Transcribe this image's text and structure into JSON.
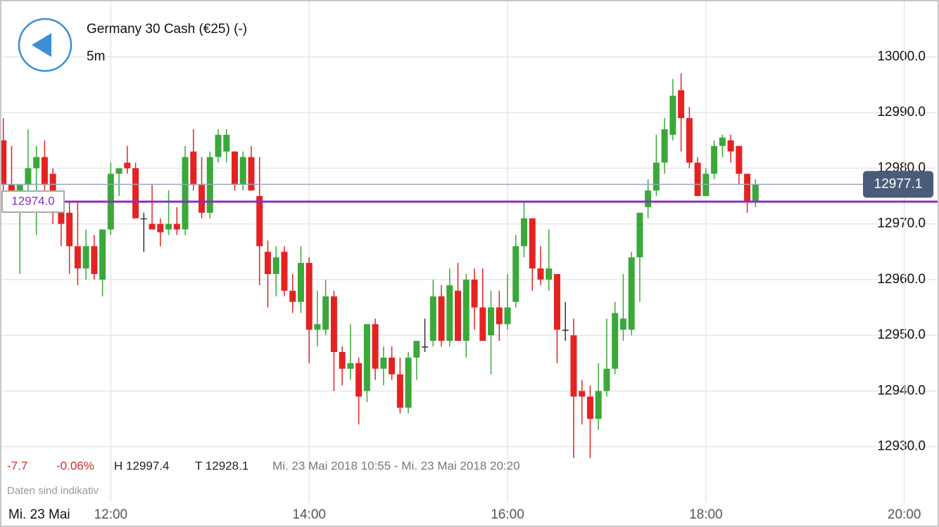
{
  "header": {
    "title": "Germany 30 Cash (€25) (-)",
    "interval": "5m"
  },
  "stats": {
    "change": "-7.7",
    "change_percent": "-0.06%",
    "high": "H 12997.4",
    "low": "T 12928.1",
    "range": "Mi. 23 Mai 2018 10:55 - Mi. 23 Mai 2018 20:20"
  },
  "note": "Daten sind indikativ",
  "date_label": "Mi. 23 Mai",
  "chart_data": {
    "type": "candlestick",
    "up_color": "#3aa83a",
    "down_color": "#e52222",
    "flat_color": "#333333",
    "grid": true,
    "xlim": [
      "10:53",
      "20:21"
    ],
    "xticks": [
      "12:00",
      "14:00",
      "16:00",
      "18:00",
      "20:00"
    ],
    "ylim": [
      12920,
      13010.2
    ],
    "yticks": [
      {
        "value": 12930,
        "label": "12930.0"
      },
      {
        "value": 12940,
        "label": "12940.0"
      },
      {
        "value": 12950,
        "label": "12950.0"
      },
      {
        "value": 12960,
        "label": "12960.0"
      },
      {
        "value": 12970,
        "label": "12970.0"
      },
      {
        "value": 12980,
        "label": "12980.0"
      },
      {
        "value": 12990,
        "label": "12990.0"
      },
      {
        "value": 13000,
        "label": "13000.0"
      }
    ],
    "x": [
      "10:55",
      "11:00",
      "11:05",
      "11:10",
      "11:15",
      "11:20",
      "11:25",
      "11:30",
      "11:35",
      "11:40",
      "11:45",
      "11:50",
      "11:55",
      "12:00",
      "12:05",
      "12:10",
      "12:15",
      "12:20",
      "12:25",
      "12:30",
      "12:35",
      "12:40",
      "12:45",
      "12:50",
      "12:55",
      "13:00",
      "13:05",
      "13:10",
      "13:15",
      "13:20",
      "13:25",
      "13:30",
      "13:35",
      "13:40",
      "13:45",
      "13:50",
      "13:55",
      "14:00",
      "14:05",
      "14:10",
      "14:15",
      "14:20",
      "14:25",
      "14:30",
      "14:35",
      "14:40",
      "14:45",
      "14:50",
      "14:55",
      "15:00",
      "15:05",
      "15:10",
      "15:15",
      "15:20",
      "15:25",
      "15:30",
      "15:35",
      "15:40",
      "15:45",
      "15:50",
      "15:55",
      "16:00",
      "16:05",
      "16:10",
      "16:15",
      "16:20",
      "16:25",
      "16:30",
      "16:35",
      "16:40",
      "16:45",
      "16:50",
      "16:55",
      "17:00",
      "17:05",
      "17:10",
      "17:15",
      "17:20",
      "17:25",
      "17:30",
      "17:35",
      "17:40",
      "17:45",
      "17:50",
      "17:55",
      "18:00",
      "18:05",
      "18:10",
      "18:15",
      "18:20",
      "18:25",
      "18:30"
    ],
    "open": [
      12985,
      12977,
      12976,
      12977,
      12980,
      12982,
      12979,
      12974,
      12972,
      12966,
      12962,
      12966,
      12960,
      12969,
      12979,
      12981,
      12980,
      12971,
      12970,
      12970,
      12969,
      12970,
      12969,
      12983,
      12977,
      12972,
      12982,
      12983,
      12983,
      12977,
      12982,
      12975,
      12965,
      12961,
      12965,
      12958,
      12956,
      12963,
      12951,
      12951,
      12957,
      12947,
      12944,
      12945,
      12940,
      12952,
      12944,
      12946,
      12943,
      12937,
      12946,
      12948,
      12949,
      12957,
      12949,
      12958,
      12949,
      12960,
      12955,
      12950,
      12955,
      12952,
      12956,
      12966,
      12971,
      12962,
      12960,
      12961,
      12951,
      12950,
      12940,
      12939,
      12935,
      12940,
      12944,
      12951,
      12951,
      12964,
      12973,
      12976,
      12981,
      12986,
      12994,
      12989,
      12981,
      12975,
      12979,
      12984,
      12985,
      12984,
      12979,
      12974
    ],
    "high": [
      12989,
      12984,
      12977,
      12987,
      12984,
      12985,
      12980,
      12976,
      12974,
      12974,
      12969,
      12968,
      12969,
      12981,
      12980,
      12984,
      12981,
      12972,
      12977,
      12971,
      12976,
      12973,
      12984,
      12987,
      12982,
      12983,
      12987,
      12987,
      12983,
      12983,
      12984,
      12982,
      12967,
      12966,
      12966,
      12961,
      12966,
      12964,
      12958,
      12960,
      12958,
      12948,
      12952,
      12946,
      12952,
      12953,
      12948,
      12948,
      12946,
      12947,
      12949,
      12953,
      12960,
      12959,
      12962,
      12963,
      12961,
      12962,
      12962,
      12958,
      12958,
      12961,
      12968,
      12974,
      12971,
      12966,
      12969,
      12961,
      12956,
      12953,
      12942,
      12941,
      12945,
      12953,
      12956,
      12961,
      12965,
      12972,
      12978,
      12986,
      12989,
      12996,
      12997,
      12991,
      12982,
      12980,
      12985,
      12986,
      12986,
      12984,
      12979,
      12978
    ],
    "low": [
      12976,
      12972,
      12961,
      12973,
      12968,
      12974,
      12970,
      12966,
      12961,
      12959,
      12960,
      12960,
      12957,
      12968,
      12975,
      12979,
      12971,
      12965,
      12969,
      12966,
      12968,
      12968,
      12968,
      12976,
      12971,
      12971,
      12981,
      12981,
      12976,
      12976,
      12976,
      12959,
      12955,
      12957,
      12957,
      12954,
      12954,
      12945,
      12948,
      12950,
      12940,
      12941,
      12942,
      12934,
      12938,
      12942,
      12941,
      12942,
      12936,
      12936,
      12942,
      12947,
      12948,
      12948,
      12948,
      12949,
      12946,
      12951,
      12949,
      12943,
      12949,
      12951,
      12955,
      12964,
      12958,
      12959,
      12958,
      12945,
      12949,
      12928,
      12934,
      12928,
      12933,
      12939,
      12943,
      12949,
      12950,
      12956,
      12971,
      12975,
      12979,
      12985,
      12983,
      12980,
      12975,
      12975,
      12978,
      12982,
      12981,
      12977,
      12972,
      12973
    ],
    "close": [
      12977,
      12976,
      12977,
      12980,
      12982,
      12977,
      12973,
      12970,
      12966,
      12962,
      12966,
      12961,
      12969,
      12979,
      12980,
      12980,
      12971,
      12971,
      12969,
      12968.5,
      12970,
      12969,
      12982,
      12977,
      12972,
      12982,
      12986,
      12986,
      12977,
      12982,
      12976,
      12966,
      12961,
      12964,
      12958,
      12956,
      12963,
      12951,
      12952,
      12957,
      12947,
      12944,
      12945,
      12939,
      12952,
      12944,
      12946,
      12943,
      12937,
      12946,
      12949,
      12948,
      12957,
      12949,
      12959,
      12949,
      12960,
      12955,
      12949,
      12955,
      12952,
      12955,
      12966,
      12971,
      12962,
      12960,
      12962,
      12951,
      12951,
      12939,
      12939,
      12935,
      12940,
      12944,
      12954,
      12953,
      12964,
      12972,
      12976,
      12981,
      12987,
      12993,
      12989,
      12981,
      12975,
      12979,
      12984,
      12985.5,
      12983,
      12979,
      12974,
      12977.1
    ],
    "last_price": 12977.1,
    "level": {
      "value": 12974,
      "label": "12974.0"
    }
  }
}
